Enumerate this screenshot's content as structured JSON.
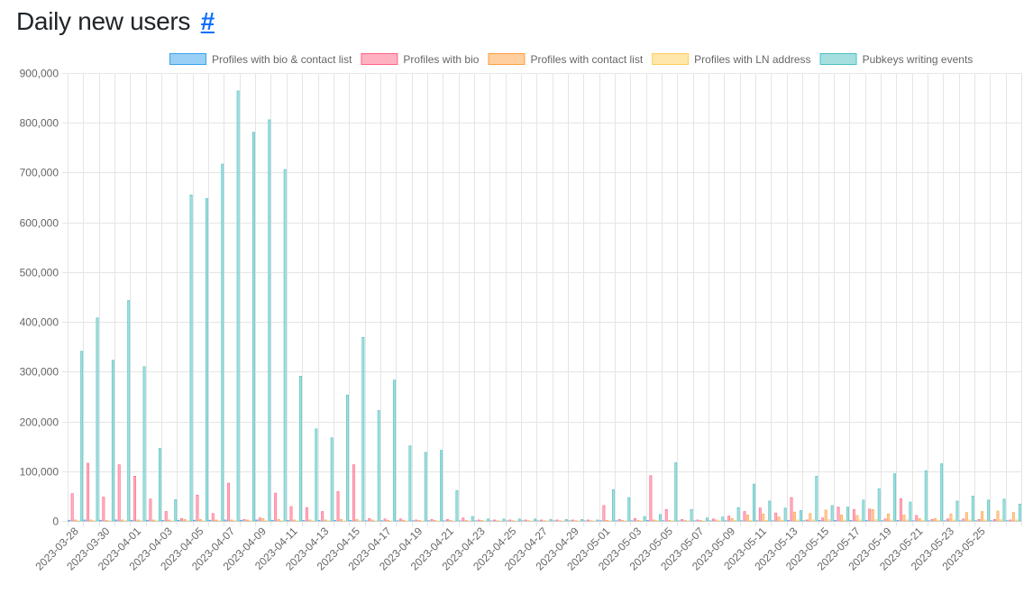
{
  "page": {
    "title": "Daily new users",
    "anchor": "#"
  },
  "colors": {
    "bio_contact": {
      "fill": "#9ad0f5",
      "stroke": "#36a2eb"
    },
    "bio": {
      "fill": "#ffb1c1",
      "stroke": "#ff6384"
    },
    "contact": {
      "fill": "#ffcf9f",
      "stroke": "#ff9f40"
    },
    "ln": {
      "fill": "#ffe6aa",
      "stroke": "#ffcd56"
    },
    "pubkeys": {
      "fill": "#a5dfdf",
      "stroke": "#4bc0c0"
    },
    "grid": "#e5e5e5"
  },
  "chart_data": {
    "type": "bar",
    "title": "",
    "xlabel": "",
    "ylabel": "",
    "ylim": [
      0,
      900000
    ],
    "yticks": [
      0,
      100000,
      200000,
      300000,
      400000,
      500000,
      600000,
      700000,
      800000,
      900000
    ],
    "ytick_labels": [
      "0",
      "100,000",
      "200,000",
      "300,000",
      "400,000",
      "500,000",
      "600,000",
      "700,000",
      "800,000",
      "900,000"
    ],
    "legend_position": "top-center",
    "categories": [
      "2023-03-28",
      "2023-03-29",
      "2023-03-30",
      "2023-03-31",
      "2023-04-01",
      "2023-04-02",
      "2023-04-03",
      "2023-04-04",
      "2023-04-05",
      "2023-04-06",
      "2023-04-07",
      "2023-04-08",
      "2023-04-09",
      "2023-04-10",
      "2023-04-11",
      "2023-04-12",
      "2023-04-13",
      "2023-04-14",
      "2023-04-15",
      "2023-04-16",
      "2023-04-17",
      "2023-04-18",
      "2023-04-19",
      "2023-04-20",
      "2023-04-21",
      "2023-04-22",
      "2023-04-23",
      "2023-04-24",
      "2023-04-25",
      "2023-04-26",
      "2023-04-27",
      "2023-04-28",
      "2023-04-29",
      "2023-04-30",
      "2023-05-01",
      "2023-05-02",
      "2023-05-03",
      "2023-05-04",
      "2023-05-05",
      "2023-05-06",
      "2023-05-07",
      "2023-05-08",
      "2023-05-09",
      "2023-05-10",
      "2023-05-11",
      "2023-05-12",
      "2023-05-13",
      "2023-05-14",
      "2023-05-15",
      "2023-05-16",
      "2023-05-17",
      "2023-05-18",
      "2023-05-19",
      "2023-05-20",
      "2023-05-21",
      "2023-05-22",
      "2023-05-23",
      "2023-05-24",
      "2023-05-25",
      "2023-05-26",
      "2023-05-27"
    ],
    "tick_labels": [
      "2023-03-28",
      "2023-03-30",
      "2023-04-01",
      "2023-04-03",
      "2023-04-05",
      "2023-04-07",
      "2023-04-09",
      "2023-04-11",
      "2023-04-13",
      "2023-04-15",
      "2023-04-17",
      "2023-04-19",
      "2023-04-21",
      "2023-04-23",
      "2023-04-25",
      "2023-04-27",
      "2023-04-29",
      "2023-05-01",
      "2023-05-03",
      "2023-05-05",
      "2023-05-07",
      "2023-05-09",
      "2023-05-11",
      "2023-05-13",
      "2023-05-15",
      "2023-05-17",
      "2023-05-19",
      "2023-05-21",
      "2023-05-23",
      "2023-05-25"
    ],
    "series": [
      {
        "name": "Profiles with bio & contact list",
        "key": "bio_contact",
        "values": [
          1500,
          2000,
          1500,
          2000,
          1500,
          1500,
          1000,
          1500,
          1500,
          1500,
          2000,
          1500,
          2000,
          1500,
          1000,
          1000,
          1000,
          1000,
          1000,
          500,
          500,
          500,
          500,
          500,
          500,
          300,
          300,
          300,
          300,
          300,
          300,
          300,
          300,
          300,
          500,
          500,
          500,
          1000,
          500,
          300,
          300,
          300,
          500,
          500,
          500,
          500,
          1000,
          500,
          1000,
          1000,
          1000,
          1000,
          500,
          1000,
          500,
          500,
          500,
          500,
          500,
          500,
          500
        ]
      },
      {
        "name": "Profiles with bio",
        "key": "bio",
        "values": [
          55000,
          116000,
          48000,
          113000,
          90000,
          44000,
          19000,
          5000,
          52000,
          15000,
          76000,
          3000,
          6000,
          56000,
          29000,
          27000,
          19000,
          59000,
          113000,
          5000,
          4000,
          4000,
          2000,
          3000,
          3000,
          6000,
          2000,
          2000,
          2000,
          2000,
          2000,
          2000,
          2000,
          2000,
          31000,
          3000,
          5000,
          91000,
          23000,
          3000,
          2000,
          4000,
          10000,
          19000,
          26000,
          16000,
          47000,
          2000,
          6000,
          28000,
          23000,
          24000,
          4000,
          45000,
          11000,
          3000,
          4000,
          4000,
          3000,
          3000,
          2000
        ]
      },
      {
        "name": "Profiles with contact list",
        "key": "contact",
        "values": [
          2000,
          2000,
          1000,
          2000,
          2000,
          2000,
          2000,
          3000,
          3000,
          2000,
          2000,
          2000,
          5000,
          3000,
          2000,
          2000,
          2000,
          3000,
          3000,
          2000,
          1500,
          1500,
          1000,
          1000,
          1000,
          1000,
          1000,
          500,
          500,
          500,
          500,
          500,
          500,
          500,
          1000,
          1000,
          1000,
          2000,
          1000,
          1000,
          1000,
          2000,
          5000,
          12000,
          14000,
          8000,
          18000,
          15000,
          22000,
          12000,
          11000,
          23000,
          14000,
          12000,
          5000,
          5000,
          14000,
          17000,
          19000,
          20000,
          17000
        ]
      },
      {
        "name": "Profiles with LN address",
        "key": "ln",
        "values": [
          500,
          500,
          300,
          500,
          500,
          500,
          300,
          500,
          500,
          500,
          500,
          500,
          500,
          500,
          300,
          300,
          300,
          300,
          300,
          300,
          200,
          200,
          200,
          200,
          200,
          200,
          200,
          200,
          200,
          200,
          200,
          200,
          200,
          200,
          500,
          500,
          500,
          1000,
          500,
          300,
          300,
          500,
          1000,
          1500,
          1500,
          1500,
          2000,
          2000,
          2500,
          2000,
          2000,
          2500,
          2000,
          2000,
          1500,
          1500,
          2000,
          2000,
          2000,
          2500,
          2000
        ]
      },
      {
        "name": "Pubkeys writing events",
        "key": "pubkeys",
        "values": [
          341000,
          408000,
          323000,
          443000,
          310000,
          146000,
          43000,
          655000,
          648000,
          717000,
          864000,
          781000,
          806000,
          706000,
          291000,
          185000,
          167000,
          253000,
          369000,
          222000,
          283000,
          151000,
          138000,
          142000,
          61000,
          9000,
          4000,
          4000,
          4000,
          4000,
          3000,
          3000,
          3000,
          2000,
          63000,
          47000,
          9000,
          13000,
          117000,
          23000,
          6000,
          8000,
          27000,
          74000,
          40000,
          26000,
          21000,
          90000,
          31000,
          28000,
          42000,
          65000,
          95000,
          38000,
          101000,
          115000,
          40000,
          50000,
          42000,
          44000,
          34000
        ]
      }
    ]
  }
}
